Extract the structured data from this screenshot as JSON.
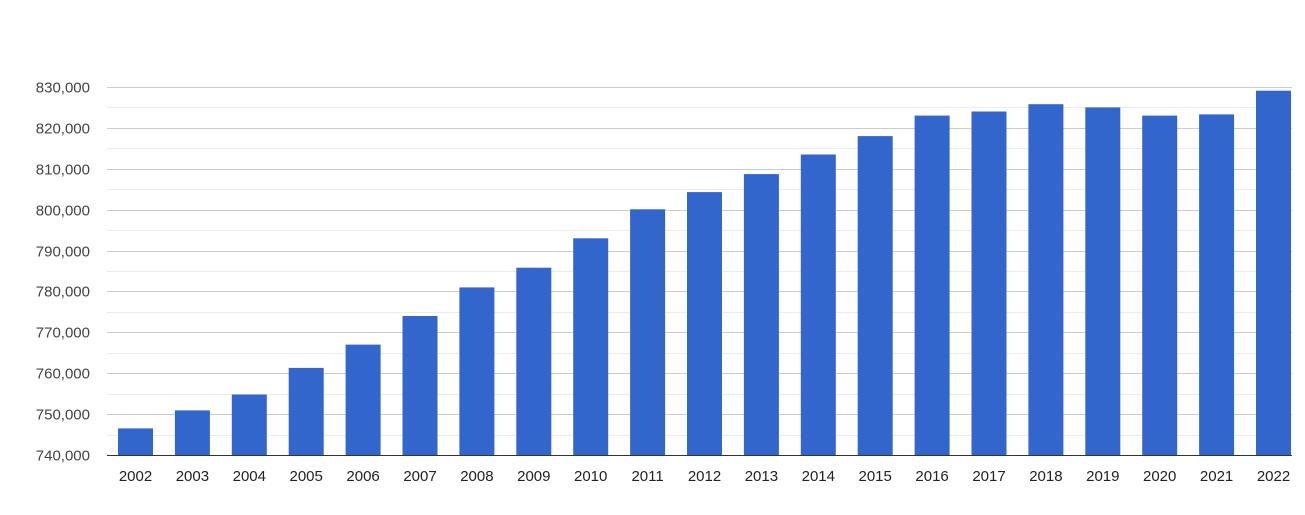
{
  "chart_data": {
    "type": "bar",
    "title": "",
    "xlabel": "",
    "ylabel": "",
    "categories": [
      "2002",
      "2003",
      "2004",
      "2005",
      "2006",
      "2007",
      "2008",
      "2009",
      "2010",
      "2011",
      "2012",
      "2013",
      "2014",
      "2015",
      "2016",
      "2017",
      "2018",
      "2019",
      "2020",
      "2021",
      "2022"
    ],
    "values": [
      746500,
      750900,
      754800,
      761300,
      767000,
      774000,
      781000,
      785800,
      793000,
      800100,
      804300,
      808700,
      813500,
      818000,
      823000,
      824000,
      825800,
      825000,
      823000,
      823300,
      829100
    ],
    "ylim": [
      740000,
      830000
    ],
    "y_ticks": [
      740000,
      750000,
      760000,
      770000,
      780000,
      790000,
      800000,
      810000,
      820000,
      830000
    ],
    "y_tick_labels": [
      "740,000",
      "750,000",
      "760,000",
      "770,000",
      "780,000",
      "790,000",
      "800,000",
      "810,000",
      "820,000",
      "830,000"
    ],
    "grid": true,
    "minor_grid": true,
    "bar_color": "#3366cc",
    "grid_color": "#cccccc",
    "minor_grid_color": "#ebebeb"
  }
}
